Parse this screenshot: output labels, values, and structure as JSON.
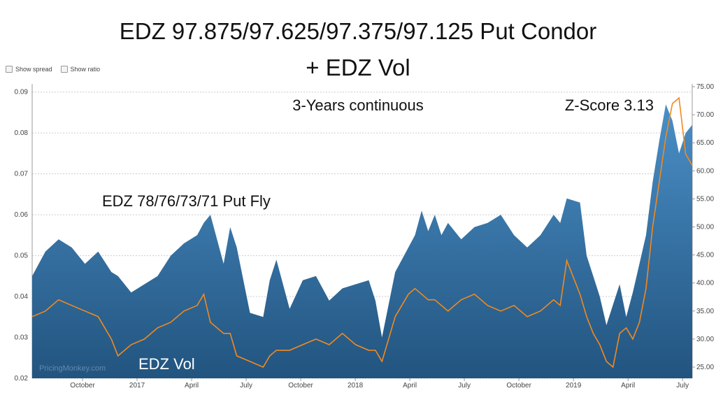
{
  "title_line1": "EDZ 97.875/97.625/97.375/97.125 Put Condor",
  "title_line2": "+ EDZ Vol",
  "controls": {
    "show_spread": "Show spread",
    "show_ratio": "Show ratio"
  },
  "annotations": {
    "period": "3-Years continuous",
    "zscore": "Z-Score 3.13",
    "area_label": "EDZ 78/76/73/71 Put Fly",
    "line_label": "EDZ Vol",
    "watermark": "PricingMonkey.com"
  },
  "colors": {
    "area_top": "#4a8fc7",
    "area_bottom": "#22547f",
    "line": "#f28a1e",
    "grid": "#cccccc"
  },
  "chart_data": {
    "type": "area",
    "x_ticks": [
      "October",
      "2017",
      "April",
      "July",
      "October",
      "2018",
      "April",
      "July",
      "October",
      "2019",
      "April",
      "July"
    ],
    "left_axis": {
      "ticks": [
        "0.09",
        "0.08",
        "0.07",
        "0.06",
        "0.05",
        "0.04",
        "0.03",
        "0.02"
      ],
      "range": [
        0.02,
        0.092
      ]
    },
    "right_axis": {
      "ticks": [
        "75.00",
        "70.00",
        "65.00",
        "60.00",
        "55.00",
        "50.00",
        "45.00",
        "40.00",
        "35.00",
        "30.00",
        "25.00"
      ],
      "range": [
        23.0,
        75.5
      ]
    },
    "series": [
      {
        "name": "EDZ 78/76/73/71 Put Fly",
        "axis": "left",
        "type": "area",
        "x": [
          0,
          0.02,
          0.04,
          0.06,
          0.08,
          0.1,
          0.12,
          0.13,
          0.15,
          0.17,
          0.19,
          0.21,
          0.23,
          0.25,
          0.26,
          0.27,
          0.29,
          0.3,
          0.31,
          0.33,
          0.35,
          0.36,
          0.37,
          0.39,
          0.41,
          0.43,
          0.45,
          0.47,
          0.49,
          0.51,
          0.52,
          0.53,
          0.55,
          0.57,
          0.58,
          0.59,
          0.6,
          0.61,
          0.62,
          0.63,
          0.65,
          0.67,
          0.69,
          0.71,
          0.73,
          0.75,
          0.77,
          0.79,
          0.8,
          0.81,
          0.83,
          0.84,
          0.85,
          0.86,
          0.87,
          0.88,
          0.89,
          0.9,
          0.91,
          0.92,
          0.93,
          0.94,
          0.95,
          0.96,
          0.97,
          0.98,
          0.99,
          1.0
        ],
        "values": [
          0.045,
          0.051,
          0.054,
          0.052,
          0.048,
          0.051,
          0.046,
          0.045,
          0.041,
          0.043,
          0.045,
          0.05,
          0.053,
          0.055,
          0.058,
          0.06,
          0.048,
          0.057,
          0.052,
          0.036,
          0.035,
          0.044,
          0.049,
          0.037,
          0.044,
          0.045,
          0.039,
          0.042,
          0.043,
          0.044,
          0.039,
          0.03,
          0.046,
          0.052,
          0.055,
          0.061,
          0.056,
          0.06,
          0.055,
          0.058,
          0.054,
          0.057,
          0.058,
          0.06,
          0.055,
          0.052,
          0.055,
          0.06,
          0.058,
          0.064,
          0.063,
          0.05,
          0.045,
          0.04,
          0.033,
          0.038,
          0.043,
          0.035,
          0.041,
          0.048,
          0.055,
          0.068,
          0.078,
          0.087,
          0.083,
          0.075,
          0.08,
          0.082
        ]
      },
      {
        "name": "EDZ Vol",
        "axis": "right",
        "type": "line",
        "x": [
          0,
          0.02,
          0.04,
          0.06,
          0.08,
          0.1,
          0.12,
          0.13,
          0.15,
          0.17,
          0.19,
          0.21,
          0.23,
          0.25,
          0.26,
          0.27,
          0.29,
          0.3,
          0.31,
          0.33,
          0.35,
          0.36,
          0.37,
          0.39,
          0.41,
          0.43,
          0.45,
          0.47,
          0.49,
          0.51,
          0.52,
          0.53,
          0.55,
          0.57,
          0.58,
          0.59,
          0.6,
          0.61,
          0.62,
          0.63,
          0.65,
          0.67,
          0.69,
          0.71,
          0.73,
          0.75,
          0.77,
          0.79,
          0.8,
          0.81,
          0.83,
          0.84,
          0.85,
          0.86,
          0.87,
          0.88,
          0.89,
          0.9,
          0.91,
          0.92,
          0.93,
          0.94,
          0.95,
          0.96,
          0.97,
          0.98,
          0.99,
          1.0
        ],
        "values": [
          34,
          35,
          37,
          36,
          35,
          34,
          30,
          27,
          29,
          30,
          32,
          33,
          35,
          36,
          38,
          33,
          31,
          31,
          27,
          26,
          25,
          27,
          28,
          28,
          29,
          30,
          29,
          31,
          29,
          28,
          28,
          26,
          34,
          38,
          39,
          38,
          37,
          37,
          36,
          35,
          37,
          38,
          36,
          35,
          36,
          34,
          35,
          37,
          36,
          44,
          38,
          34,
          31,
          29,
          26,
          25,
          31,
          32,
          30,
          33,
          39,
          50,
          58,
          66,
          72,
          73,
          63,
          61
        ]
      }
    ]
  }
}
